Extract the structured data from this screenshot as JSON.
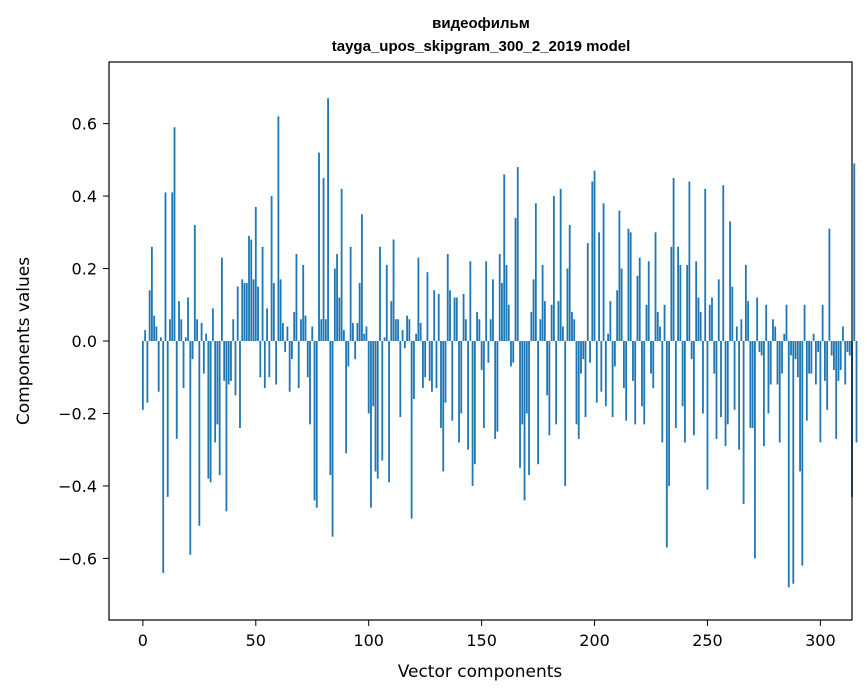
{
  "chart_data": {
    "type": "bar",
    "title": "видеофильм",
    "subtitle": "tayga_upos_skipgram_300_2_2019 model",
    "xlabel": "Vector components",
    "ylabel": "Components values",
    "xlim": [
      -15,
      314
    ],
    "ylim": [
      -0.77,
      0.77
    ],
    "xticks": [
      0,
      50,
      100,
      150,
      200,
      250,
      300
    ],
    "xtick_labels": [
      "0",
      "50",
      "100",
      "150",
      "200",
      "250",
      "300"
    ],
    "yticks": [
      -0.6,
      -0.4,
      -0.2,
      0.0,
      0.2,
      0.4,
      0.6
    ],
    "ytick_labels": [
      "−0.6",
      "−0.4",
      "−0.2",
      "0.0",
      "0.2",
      "0.4",
      "0.6"
    ],
    "bar_color": "#1f77b4",
    "values": [
      -0.19,
      0.03,
      -0.17,
      0.14,
      0.26,
      0.07,
      0.04,
      -0.14,
      0.01,
      -0.64,
      0.41,
      -0.43,
      0.06,
      0.41,
      0.59,
      -0.27,
      0.11,
      0.06,
      -0.13,
      0.01,
      0.12,
      -0.59,
      -0.05,
      0.32,
      0.06,
      -0.51,
      0.05,
      -0.09,
      0.02,
      -0.38,
      -0.39,
      0.09,
      -0.28,
      -0.23,
      -0.37,
      0.23,
      -0.11,
      -0.47,
      -0.12,
      -0.11,
      0.06,
      -0.15,
      0.15,
      -0.24,
      0.17,
      0.16,
      0.16,
      0.29,
      0.28,
      0.17,
      0.37,
      0.15,
      -0.1,
      0.26,
      -0.13,
      0.09,
      -0.1,
      0.4,
      0.16,
      -0.12,
      0.62,
      0.17,
      0.05,
      -0.03,
      0.04,
      -0.14,
      -0.05,
      0.08,
      0.24,
      -0.13,
      0.06,
      0.21,
      0.07,
      -0.1,
      -0.23,
      0.04,
      -0.44,
      -0.46,
      0.52,
      0.06,
      0.45,
      0.06,
      0.67,
      -0.37,
      -0.54,
      0.2,
      0.24,
      0.12,
      0.42,
      0.03,
      -0.31,
      -0.07,
      0.26,
      0.05,
      -0.05,
      0.05,
      0.16,
      0.35,
      0.02,
      0.04,
      -0.2,
      -0.46,
      -0.18,
      -0.36,
      -0.38,
      0.26,
      -0.33,
      0.01,
      0.21,
      -0.39,
      0.11,
      0.28,
      0.06,
      0.06,
      -0.21,
      0.03,
      -0.02,
      0.07,
      0.06,
      -0.49,
      -0.16,
      0.02,
      0.23,
      0.05,
      -0.13,
      -0.1,
      0.19,
      -0.11,
      -0.14,
      0.14,
      -0.13,
      0.13,
      -0.24,
      -0.36,
      -0.17,
      0.24,
      0.14,
      -0.22,
      0.12,
      0.12,
      -0.28,
      -0.2,
      0.13,
      0.06,
      -0.3,
      0.22,
      -0.4,
      -0.34,
      0.08,
      0.06,
      -0.08,
      -0.24,
      0.22,
      -0.06,
      0.06,
      0.17,
      -0.27,
      -0.25,
      0.24,
      0.16,
      0.46,
      0.21,
      0.1,
      -0.07,
      -0.06,
      0.34,
      0.48,
      -0.35,
      -0.23,
      -0.44,
      -0.2,
      -0.37,
      0.08,
      0.17,
      0.38,
      -0.34,
      0.06,
      0.21,
      0.11,
      -0.15,
      -0.26,
      0.1,
      0.4,
      -0.23,
      0.11,
      0.42,
      0.04,
      -0.4,
      0.2,
      0.32,
      0.08,
      0.06,
      -0.23,
      -0.27,
      -0.09,
      -0.05,
      -0.21,
      0.27,
      -0.06,
      0.44,
      0.47,
      -0.17,
      0.3,
      -0.14,
      0.38,
      -0.18,
      0.02,
      0.11,
      -0.21,
      -0.07,
      0.14,
      0.36,
      0.2,
      -0.13,
      -0.22,
      0.31,
      0.3,
      -0.11,
      -0.23,
      0.18,
      0.23,
      -0.18,
      -0.23,
      0.1,
      0.22,
      -0.09,
      -0.13,
      0.3,
      0.08,
      0.04,
      -0.28,
      0.1,
      -0.57,
      -0.4,
      0.26,
      0.45,
      -0.24,
      0.26,
      0.21,
      -0.18,
      -0.28,
      0.21,
      0.44,
      -0.05,
      -0.26,
      0.22,
      0.12,
      0.08,
      -0.2,
      0.42,
      -0.41,
      0.1,
      0.12,
      -0.09,
      -0.27,
      0.17,
      -0.21,
      0.43,
      -0.29,
      -0.23,
      0.33,
      0.15,
      -0.19,
      0.04,
      -0.3,
      0.06,
      -0.45,
      0.21,
      0.11,
      -0.24,
      -0.24,
      -0.6,
      0.12,
      -0.03,
      -0.04,
      -0.29,
      0.1,
      -0.2,
      -0.12,
      0.06,
      0.04,
      -0.12,
      -0.28,
      -0.09,
      0.02,
      0.1,
      -0.68,
      -0.04,
      -0.67,
      -0.05,
      -0.1,
      -0.36,
      -0.62,
      0.1,
      -0.22,
      -0.09,
      -0.09,
      0.02,
      -0.12,
      -0.03,
      -0.28,
      0.1,
      -0.11,
      -0.19,
      0.31,
      -0.04,
      -0.08,
      -0.27,
      -0.11,
      -0.08,
      0.04,
      -0.12,
      -0.03,
      -0.04,
      -0.43,
      0.49,
      -0.28
    ]
  }
}
